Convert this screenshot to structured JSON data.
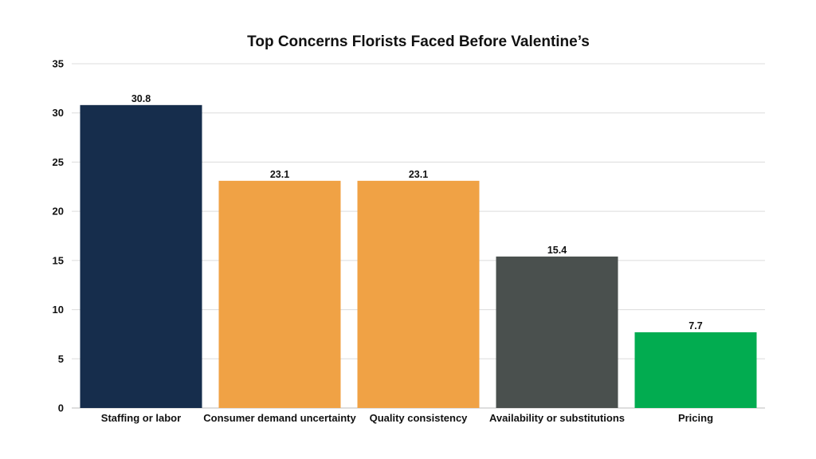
{
  "chart_data": {
    "type": "bar",
    "title": "Top Concerns Florists Faced Before Valentine’s",
    "xlabel": "",
    "ylabel": "",
    "ylim": [
      0,
      35
    ],
    "yticks": [
      0,
      5,
      10,
      15,
      20,
      25,
      30,
      35
    ],
    "yticks_labels": [
      "0",
      "5",
      "10",
      "15",
      "20",
      "25",
      "30",
      "35"
    ],
    "grid": true,
    "legend": "none",
    "categories": [
      "Staffing or labor",
      "Consumer demand uncertainty",
      "Quality consistency",
      "Availability or substitutions",
      "Pricing"
    ],
    "values": [
      30.8,
      23.1,
      23.1,
      15.4,
      7.7
    ],
    "value_labels": [
      "30.8",
      "23.1",
      "23.1",
      "15.4",
      "7.7"
    ],
    "colors": [
      "#162d4c",
      "#f0a245",
      "#f0a245",
      "#4a504e",
      "#02ac50"
    ]
  }
}
